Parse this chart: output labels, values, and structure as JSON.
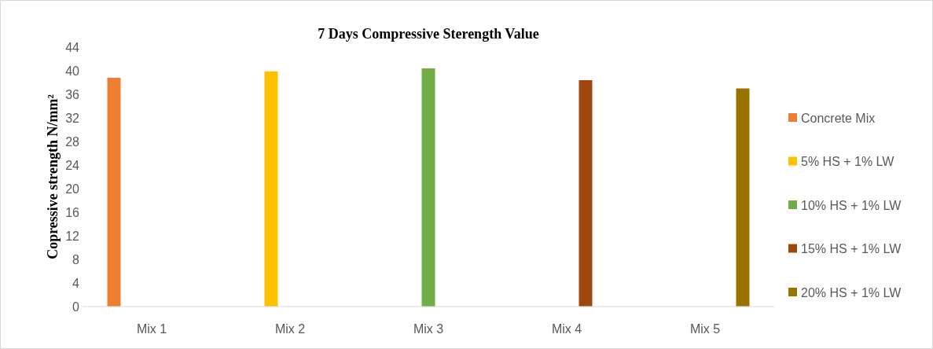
{
  "chart_data": {
    "type": "bar",
    "title": "7 Days Compressive Sterength Value",
    "ylabel": "Copressive strength N/mm²",
    "categories": [
      "Mix 1",
      "Mix 2",
      "Mix 3",
      "Mix 4",
      "Mix 5"
    ],
    "series": [
      {
        "name": "Concrete Mix",
        "color": "#ed7d31",
        "values": [
          38.8,
          null,
          null,
          null,
          null
        ]
      },
      {
        "name": "5% HS + 1% LW",
        "color": "#ffc000",
        "values": [
          null,
          39.9,
          null,
          null,
          null
        ]
      },
      {
        "name": "10% HS + 1% LW",
        "color": "#70ad47",
        "values": [
          null,
          null,
          40.4,
          null,
          null
        ]
      },
      {
        "name": "15% HS + 1% LW",
        "color": "#9e480e",
        "values": [
          null,
          null,
          null,
          38.4,
          null
        ]
      },
      {
        "name": "20% HS + 1% LW",
        "color": "#997300",
        "values": [
          null,
          null,
          null,
          null,
          37.0
        ]
      }
    ],
    "ylim": [
      0,
      44
    ],
    "yticks": [
      0,
      4,
      8,
      12,
      16,
      20,
      24,
      28,
      32,
      36,
      40,
      44
    ],
    "grid": false,
    "legend": "right"
  }
}
